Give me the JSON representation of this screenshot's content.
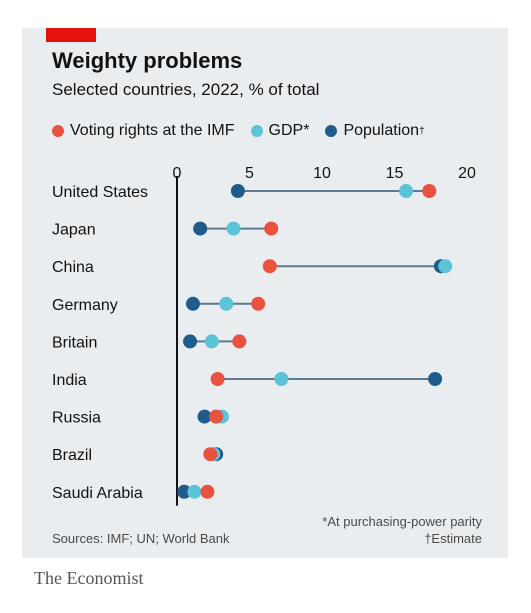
{
  "header": {
    "title": "Weighty problems",
    "subtitle": "Selected countries, 2022, % of total"
  },
  "legend": [
    {
      "label": "Voting rights at the IMF",
      "sup": "",
      "color": "#e8523f"
    },
    {
      "label": "GDP*",
      "sup": "",
      "color": "#5bc4d6"
    },
    {
      "label": "Population",
      "sup": "†",
      "color": "#1f5c8b"
    }
  ],
  "footer": {
    "sources": "Sources: IMF; UN; World Bank",
    "note1": "*At purchasing-power parity",
    "note2": "†Estimate",
    "brand": "The Economist"
  },
  "chart_data": {
    "type": "dot-plot",
    "title": "Weighty problems",
    "subtitle": "Selected countries, 2022, % of total",
    "xlim": [
      0,
      20
    ],
    "xticks": [
      0,
      5,
      10,
      15,
      20
    ],
    "series_names": [
      "Voting rights at the IMF",
      "GDP*",
      "Population†"
    ],
    "categories": [
      "United States",
      "Japan",
      "China",
      "Germany",
      "Britain",
      "India",
      "Russia",
      "Brazil",
      "Saudi Arabia"
    ],
    "series": [
      {
        "name": "Voting rights at the IMF",
        "color": "#e8523f",
        "values": [
          17.4,
          6.5,
          6.4,
          5.6,
          4.3,
          2.8,
          2.7,
          2.3,
          2.1
        ]
      },
      {
        "name": "GDP*",
        "color": "#5bc4d6",
        "values": [
          15.8,
          3.9,
          18.5,
          3.4,
          2.4,
          7.2,
          3.1,
          2.5,
          1.2
        ]
      },
      {
        "name": "Population",
        "color": "#1f5c8b",
        "values": [
          4.2,
          1.6,
          18.2,
          1.1,
          0.9,
          17.8,
          1.9,
          2.7,
          0.5
        ]
      }
    ]
  }
}
